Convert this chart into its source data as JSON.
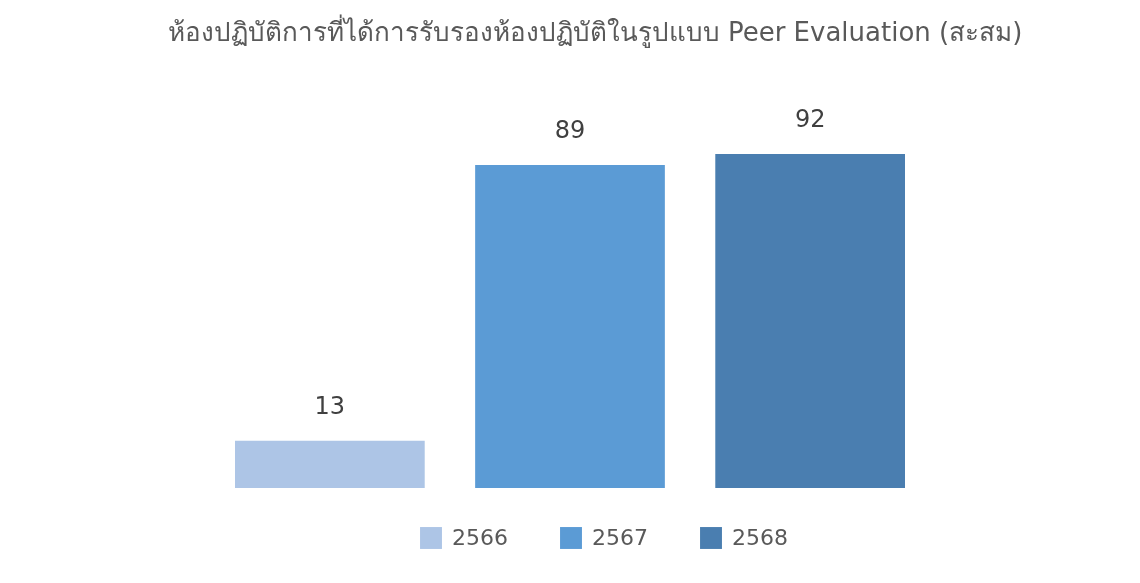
{
  "chart_data": {
    "type": "bar",
    "title": "ห้องปฏิบัติการที่ได้การรับรองห้องปฏิบัติในรูปแบบ Peer Evaluation (สะสม)",
    "categories": [
      null
    ],
    "series": [
      {
        "name": "2566",
        "color": "#adc5e6",
        "values": [
          13
        ]
      },
      {
        "name": "2567",
        "color": "#5b9bd5",
        "values": [
          89
        ]
      },
      {
        "name": "2568",
        "color": "#4a7eb0",
        "values": [
          92
        ]
      }
    ],
    "data_labels": true,
    "legend": "bottom",
    "tick_labels": false
  }
}
